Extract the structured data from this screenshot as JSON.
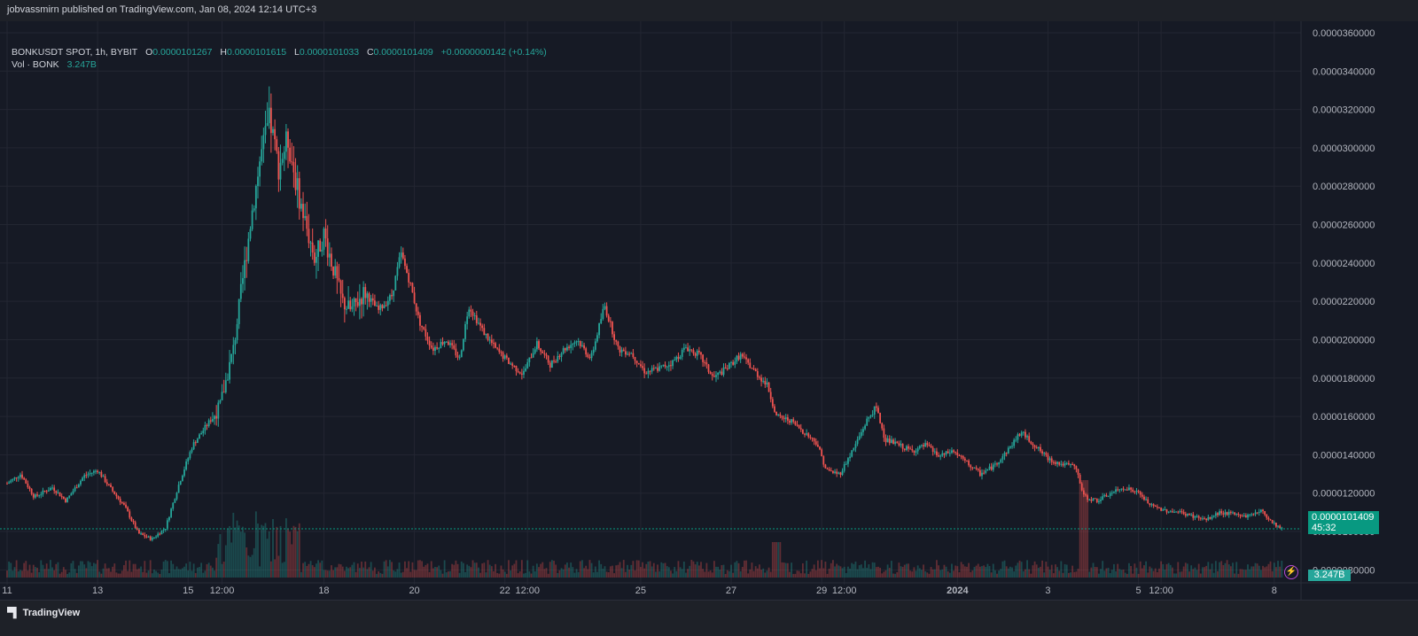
{
  "publisher_line": "jobvassmirn published on TradingView.com, Jan 08, 2024 12:14 UTC+3",
  "legend": {
    "symbol": "BONKUSDT SPOT, 1h, BYBIT",
    "o_label": "O",
    "o_value": "0.0000101267",
    "h_label": "H",
    "h_value": "0.0000101615",
    "l_label": "L",
    "l_value": "0.0000101033",
    "c_label": "C",
    "c_value": "0.0000101409",
    "change": "+0.0000000142 (+0.14%)",
    "vol_label": "Vol · BONK",
    "vol_value": "3.247B"
  },
  "last_price_tag": {
    "price": "0.0000101409",
    "countdown": "45:32"
  },
  "volume_tag": "3.247B",
  "brand": "TradingView",
  "colors": {
    "up": "#26a69a",
    "down": "#ef5350",
    "background": "#161a25",
    "grid": "#232632",
    "axis_text": "#b2b5be",
    "last_price": "#089981"
  },
  "chart_data": {
    "type": "candlestick",
    "symbol": "BONKUSDT SPOT",
    "interval": "1h",
    "exchange": "BYBIT",
    "y_ticks": [
      "0.0000080000",
      "0.0000100000",
      "0.0000120000",
      "0.0000140000",
      "0.0000160000",
      "0.0000180000",
      "0.0000200000",
      "0.0000220000",
      "0.0000240000",
      "0.0000260000",
      "0.0000280000",
      "0.0000300000",
      "0.0000320000",
      "0.0000340000",
      "0.0000360000"
    ],
    "ylim": [
      7.6e-06,
      3.66e-05
    ],
    "x_ticks": [
      {
        "label": "11",
        "day": 0
      },
      {
        "label": "13",
        "day": 2
      },
      {
        "label": "15",
        "day": 4
      },
      {
        "label": "12:00",
        "day": 4.75
      },
      {
        "label": "18",
        "day": 7
      },
      {
        "label": "20",
        "day": 9
      },
      {
        "label": "22",
        "day": 11
      },
      {
        "label": "12:00",
        "day": 11.5
      },
      {
        "label": "25",
        "day": 14
      },
      {
        "label": "27",
        "day": 16
      },
      {
        "label": "29",
        "day": 18
      },
      {
        "label": "12:00",
        "day": 18.5
      },
      {
        "label": "2024",
        "day": 21
      },
      {
        "label": "3",
        "day": 23
      },
      {
        "label": "5",
        "day": 25
      },
      {
        "label": "12:00",
        "day": 25.5
      },
      {
        "label": "8",
        "day": 28
      }
    ],
    "x_day_range": [
      0,
      28.2
    ],
    "price_path": [
      [
        0.0,
        12.5
      ],
      [
        0.3,
        13.0
      ],
      [
        0.6,
        11.8
      ],
      [
        1.0,
        12.3
      ],
      [
        1.3,
        11.6
      ],
      [
        1.7,
        12.9
      ],
      [
        2.0,
        13.2
      ],
      [
        2.3,
        12.2
      ],
      [
        2.6,
        11.3
      ],
      [
        2.9,
        9.9
      ],
      [
        3.2,
        9.6
      ],
      [
        3.5,
        10.2
      ],
      [
        3.8,
        12.5
      ],
      [
        4.1,
        14.5
      ],
      [
        4.4,
        15.5
      ],
      [
        4.7,
        16.5
      ],
      [
        5.0,
        19.5
      ],
      [
        5.2,
        23.0
      ],
      [
        5.4,
        26.5
      ],
      [
        5.6,
        29.5
      ],
      [
        5.8,
        31.5
      ],
      [
        6.0,
        29.0
      ],
      [
        6.2,
        30.5
      ],
      [
        6.4,
        28.0
      ],
      [
        6.6,
        26.0
      ],
      [
        6.8,
        24.2
      ],
      [
        7.0,
        25.5
      ],
      [
        7.2,
        23.8
      ],
      [
        7.4,
        22.0
      ],
      [
        7.6,
        21.5
      ],
      [
        7.9,
        22.5
      ],
      [
        8.2,
        21.5
      ],
      [
        8.5,
        22.3
      ],
      [
        8.7,
        24.5
      ],
      [
        8.9,
        23.0
      ],
      [
        9.1,
        21.0
      ],
      [
        9.4,
        19.5
      ],
      [
        9.7,
        20.0
      ],
      [
        10.0,
        19.0
      ],
      [
        10.2,
        21.8
      ],
      [
        10.5,
        20.5
      ],
      [
        10.8,
        19.5
      ],
      [
        11.1,
        18.8
      ],
      [
        11.4,
        18.2
      ],
      [
        11.7,
        19.8
      ],
      [
        12.0,
        18.7
      ],
      [
        12.3,
        19.5
      ],
      [
        12.6,
        20.0
      ],
      [
        12.9,
        19.0
      ],
      [
        13.2,
        21.8
      ],
      [
        13.5,
        19.5
      ],
      [
        13.8,
        19.3
      ],
      [
        14.1,
        18.3
      ],
      [
        14.4,
        18.5
      ],
      [
        14.7,
        18.8
      ],
      [
        15.0,
        19.6
      ],
      [
        15.3,
        19.2
      ],
      [
        15.6,
        18.0
      ],
      [
        15.9,
        18.5
      ],
      [
        16.2,
        19.2
      ],
      [
        16.5,
        18.4
      ],
      [
        16.8,
        17.6
      ],
      [
        17.0,
        16.0
      ],
      [
        17.3,
        15.8
      ],
      [
        17.6,
        15.2
      ],
      [
        17.9,
        14.6
      ],
      [
        18.1,
        13.2
      ],
      [
        18.4,
        13.0
      ],
      [
        18.7,
        14.3
      ],
      [
        19.0,
        15.8
      ],
      [
        19.2,
        16.5
      ],
      [
        19.4,
        14.8
      ],
      [
        19.7,
        14.5
      ],
      [
        20.0,
        14.2
      ],
      [
        20.3,
        14.5
      ],
      [
        20.6,
        13.9
      ],
      [
        20.9,
        14.2
      ],
      [
        21.2,
        13.6
      ],
      [
        21.5,
        13.0
      ],
      [
        21.8,
        13.4
      ],
      [
        22.1,
        14.2
      ],
      [
        22.4,
        15.2
      ],
      [
        22.7,
        14.5
      ],
      [
        23.0,
        13.8
      ],
      [
        23.3,
        13.5
      ],
      [
        23.6,
        13.4
      ],
      [
        23.8,
        11.8
      ],
      [
        24.1,
        11.6
      ],
      [
        24.4,
        12.0
      ],
      [
        24.7,
        12.3
      ],
      [
        25.0,
        12.0
      ],
      [
        25.3,
        11.3
      ],
      [
        25.6,
        11.1
      ],
      [
        25.9,
        11.0
      ],
      [
        26.2,
        10.8
      ],
      [
        26.5,
        10.6
      ],
      [
        26.8,
        11.0
      ],
      [
        27.1,
        10.9
      ],
      [
        27.4,
        10.8
      ],
      [
        27.7,
        11.1
      ],
      [
        28.0,
        10.4
      ],
      [
        28.2,
        10.1
      ]
    ],
    "volume_panel": "Vol · BONK"
  }
}
